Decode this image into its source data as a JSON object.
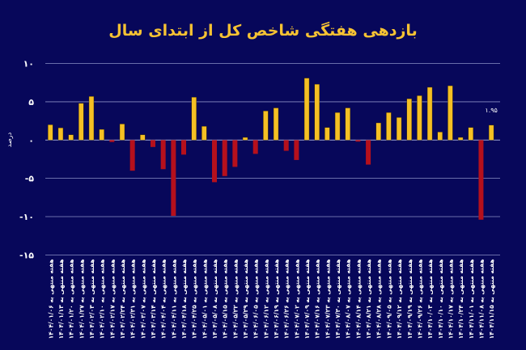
{
  "chart_data": {
    "type": "bar",
    "title": "بازدهی هفتگی شاخص کل از ابتدای سال",
    "xlabel": "",
    "ylabel": "درصد",
    "ylim": [
      -15,
      10
    ],
    "yticks": [
      10,
      5,
      0,
      -5,
      -10,
      -15
    ],
    "ytick_labels": [
      "۱۰",
      "۵",
      "۰",
      "-۵",
      "-۱۰",
      "-۱۵"
    ],
    "grid": true,
    "colors": {
      "positive": "#f5c024",
      "negative": "#b5101c",
      "background": "#07075a",
      "grid": "#8a8fc4",
      "title": "#f6c233"
    },
    "categories": [
      "هفته منتهی به ۱۴۰۴/۰۱/۰۶",
      "هفته منتهی به ۱۴۰۴/۰۱/۱۳",
      "هفته منتهی به ۱۴۰۴/۰۱/۲۰",
      "هفته منتهی به ۱۴۰۴/۰۱/۲۷",
      "هفته منتهی به ۱۴۰۴/۰۲/۰۳",
      "هفته منتهی به ۱۴۰۴/۰۲/۱۰",
      "هفته منتهی به ۱۴۰۴/۰۲/۱۷",
      "هفته منتهی به ۱۴۰۴/۰۲/۲۴",
      "هفته منتهی به ۱۴۰۴/۰۲/۳۱",
      "هفته منتهی به ۱۴۰۴/۰۳/۰۷",
      "هفته منتهی به ۱۴۰۴/۰۳/۱۴",
      "هفته منتهی به ۱۴۰۴/۰۴/۰۴",
      "هفته منتهی به ۱۴۰۴/۰۴/۱۱",
      "هفته منتهی به ۱۴۰۴/۰۴/۱۸",
      "هفته منتهی به ۱۴۰۴/۰۴/۲۵",
      "هفته منتهی به ۱۴۰۴/۰۵/۰۱",
      "هفته منتهی به ۱۴۰۴/۰۵/۰۸",
      "هفته منتهی به ۱۴۰۴/۰۵/۱۵",
      "هفته منتهی به ۱۴۰۴/۰۵/۲۲",
      "هفته منتهی به ۱۴۰۴/۰۵/۲۹",
      "هفته منتهی به ۱۴۰۴/۰۶/۰۵",
      "هفته منتهی به ۱۴۰۴/۰۶/۱۲",
      "هفته منتهی به ۱۴۰۴/۰۶/۱۹",
      "هفته منتهی به ۱۴۰۴/۰۶/۲۶",
      "هفته منتهی به ۱۴۰۴/۰۷/۰۲",
      "هفته منتهی به ۱۴۰۴/۰۷/۰۹",
      "هفته منتهی به ۱۴۰۴/۰۷/۱۶",
      "هفته منتهی به ۱۴۰۴/۰۷/۲۳",
      "هفته منتهی به ۱۴۰۴/۰۷/۳۰",
      "هفته منتهی به ۱۴۰۴/۰۸/۰۷",
      "هفته منتهی به ۱۴۰۴/۰۸/۱۴",
      "هفته منتهی به ۱۴۰۴/۰۸/۲۱",
      "هفته منتهی به ۱۴۰۴/۰۸/۲۸",
      "هفته منتهی به ۱۴۰۴/۰۹/۰۵",
      "هفته منتهی به ۱۴۰۴/۰۹/۱۲",
      "هفته منتهی به ۱۴۰۴/۰۹/۱۹",
      "هفته منتهی به ۱۴۰۴/۰۹/۲۶",
      "هفته منتهی به ۱۴۰۴/۱۰/۰۳",
      "هفته منتهی به ۱۴۰۴/۱۰/۱۰",
      "هفته منتهی به ۱۴۰۴/۱۰/۱۷",
      "هفته منتهی به ۱۴۰۴/۱۰/۲۴",
      "هفته منتهی به ۱۴۰۴/۱۱/۰۱",
      "هفته منتهی به ۱۴۰۴/۱۱/۰۸",
      "هفته منتهی به ۱۴۰۴/۱۱/۱۵"
    ],
    "values": [
      2.0,
      1.6,
      0.7,
      4.8,
      5.7,
      1.4,
      -0.25,
      2.1,
      -4.0,
      0.7,
      -0.9,
      -3.8,
      -9.9,
      -1.9,
      5.6,
      1.8,
      -5.5,
      -4.7,
      -3.5,
      0.35,
      -1.8,
      3.8,
      4.2,
      -1.4,
      -2.6,
      8.1,
      7.3,
      1.65,
      3.6,
      4.2,
      -0.2,
      -3.2,
      2.25,
      3.6,
      2.95,
      5.4,
      5.8,
      6.9,
      1.05,
      7.1,
      0.35,
      1.65,
      -10.4,
      1.95
    ],
    "data_labels": [
      {
        "index": 43,
        "text": "۱.۹۵"
      }
    ]
  }
}
